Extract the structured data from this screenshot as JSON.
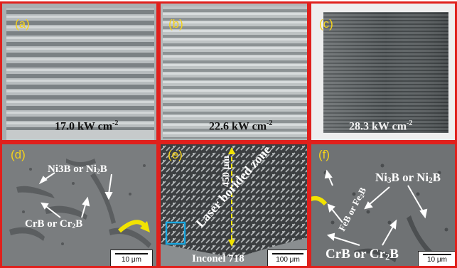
{
  "panels": {
    "a": {
      "tag": "(a)",
      "caption_value": "17.0 kW cm",
      "caption_exp": "-2"
    },
    "b": {
      "tag": "(b)",
      "caption_value": "22.6 kW cm",
      "caption_exp": "-2"
    },
    "c": {
      "tag": "(c)",
      "caption_value": "28.3 kW cm",
      "caption_exp": "-2"
    },
    "d": {
      "tag": "(d)",
      "phase_top": "Ni3B or Ni",
      "phase_top_sub": "2",
      "phase_top_end": "B",
      "phase_bottom": "CrB or Cr",
      "phase_bottom_sub": "2",
      "phase_bottom_end": "B",
      "scale": "10 μm"
    },
    "e": {
      "tag": "(e)",
      "depth": "450 μm",
      "zone": "Laser borided zone",
      "substrate": "Inconel 718",
      "scale": "100 μm"
    },
    "f": {
      "tag": "(f)",
      "phase_diag": "FeB or Fe",
      "phase_diag_sub": "2",
      "phase_diag_end": "B",
      "phase_top": "Ni",
      "phase_top_sub1": "3",
      "phase_top_mid": "B or Ni",
      "phase_top_sub2": "2",
      "phase_top_end": "B",
      "phase_bottom": "CrB or Cr",
      "phase_bottom_sub": "2",
      "phase_bottom_end": "B",
      "scale": "10 μm"
    }
  },
  "colors": {
    "frame": "#e0201c",
    "tag": "#f4d21c",
    "highlight": "#1aa7e0",
    "arrow": "#f2e300"
  }
}
